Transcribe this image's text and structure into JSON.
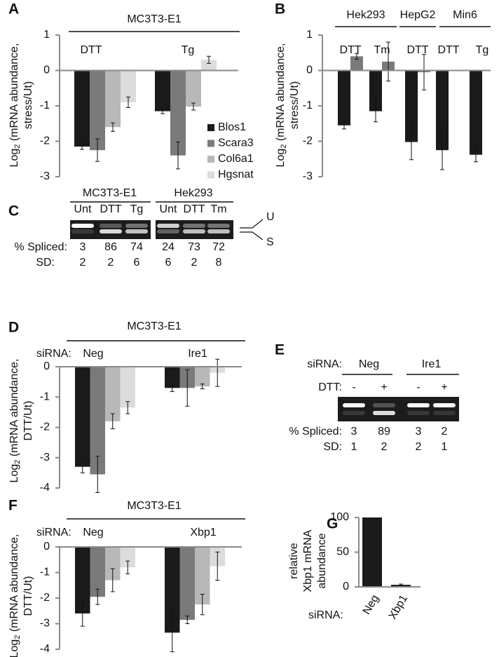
{
  "chart_data": [
    {
      "type": "bar",
      "panel": "A",
      "header": "MC3T3-E1",
      "ylabel": {
        "base": "Log",
        "sub": "2",
        "line1": " (mRNA abundance,",
        "line2": "stress/Ut)"
      },
      "categories": [
        "DTT",
        "Tg"
      ],
      "series": [
        {
          "name": "Blos1",
          "color": "#1a1a1a",
          "values": [
            -2.15,
            -1.15
          ],
          "errors": [
            0.08,
            0.07
          ]
        },
        {
          "name": "Scara3",
          "color": "#7a7a7a",
          "values": [
            -2.25,
            -2.4
          ],
          "errors": [
            0.32,
            0.38
          ]
        },
        {
          "name": "Col6a1",
          "color": "#b8b8b8",
          "values": [
            -1.6,
            -1.02
          ],
          "errors": [
            0.12,
            0.1
          ]
        },
        {
          "name": "Hgsnat",
          "color": "#dcdcdc",
          "values": [
            -0.9,
            0.3
          ],
          "errors": [
            0.15,
            0.1
          ]
        }
      ],
      "ylim": [
        -3,
        1
      ],
      "yticks": [
        -3,
        -2,
        -1,
        0,
        1
      ],
      "legend": "lower-right"
    },
    {
      "type": "bar",
      "panel": "B",
      "ylabel": {
        "base": "Log",
        "sub": "2",
        "line1": " (mRNA abundance,",
        "line2": "stress/Ut)"
      },
      "groups": [
        {
          "label": "Hek293",
          "categories": [
            "DTT",
            "Tm"
          ]
        },
        {
          "label": "HepG2",
          "categories": [
            "DTT"
          ]
        },
        {
          "label": "Min6",
          "categories": [
            "DTT",
            "Tg"
          ]
        }
      ],
      "series": [
        {
          "color": "#1a1a1a",
          "values": [
            -1.55,
            -1.15,
            -2.02,
            -2.25,
            -2.38
          ],
          "errors": [
            0.1,
            0.3,
            0.5,
            0.55,
            0.2
          ]
        },
        {
          "color": "#7a7a7a",
          "values": [
            0.4,
            0.25,
            -0.05,
            null,
            null
          ],
          "errors": [
            0.08,
            0.55,
            0.5,
            null,
            null
          ]
        }
      ],
      "ylim": [
        -3,
        1
      ],
      "yticks": [
        -3,
        -2,
        -1,
        0,
        1
      ]
    },
    {
      "type": "bar",
      "panel": "D",
      "header": "MC3T3-E1",
      "category_axis_label": "siRNA:",
      "ylabel": {
        "base": "Log",
        "sub": "2",
        "line1": " (mRNA abundance,",
        "line2": "DTT/Ut)"
      },
      "categories": [
        "Neg",
        "Ire1"
      ],
      "series": [
        {
          "color": "#1a1a1a",
          "values": [
            -3.3,
            -0.7
          ],
          "errors": [
            0.2,
            0.12
          ]
        },
        {
          "color": "#7a7a7a",
          "values": [
            -3.55,
            -0.7
          ],
          "errors": [
            0.6,
            0.6
          ]
        },
        {
          "color": "#b8b8b8",
          "values": [
            -1.8,
            -0.65
          ],
          "errors": [
            0.25,
            0.08
          ]
        },
        {
          "color": "#dcdcdc",
          "values": [
            -1.35,
            -0.2
          ],
          "errors": [
            0.2,
            0.45
          ]
        }
      ],
      "ylim": [
        -4,
        0
      ],
      "yticks": [
        -4,
        -3,
        -2,
        -1,
        0
      ]
    },
    {
      "type": "bar",
      "panel": "F",
      "header": "MC3T3-E1",
      "category_axis_label": "siRNA:",
      "ylabel": {
        "base": "Log",
        "sub": "2",
        "line1": " (mRNA abundance,",
        "line2": "DTT/Ut)"
      },
      "categories": [
        "Neg",
        "Xbp1"
      ],
      "series": [
        {
          "color": "#1a1a1a",
          "values": [
            -2.6,
            -3.35
          ],
          "errors": [
            0.5,
            0.75
          ]
        },
        {
          "color": "#7a7a7a",
          "values": [
            -1.95,
            -2.85
          ],
          "errors": [
            0.3,
            0.15
          ]
        },
        {
          "color": "#b8b8b8",
          "values": [
            -1.3,
            -2.25
          ],
          "errors": [
            0.45,
            0.4
          ]
        },
        {
          "color": "#dcdcdc",
          "values": [
            -0.8,
            -0.75
          ],
          "errors": [
            0.25,
            0.55
          ]
        }
      ],
      "ylim": [
        -4,
        0
      ],
      "yticks": [
        -4,
        -3,
        -2,
        -1,
        0
      ]
    },
    {
      "type": "bar",
      "panel": "G",
      "category_axis_label": "siRNA:",
      "ylabel_lines": [
        "relative",
        "Xbp1 mRNA",
        "abundance"
      ],
      "categories": [
        "Neg",
        "Xbp1"
      ],
      "series": [
        {
          "color": "#1a1a1a",
          "values": [
            100,
            3
          ],
          "errors": [
            null,
            1
          ]
        }
      ],
      "ylim": [
        0,
        100
      ],
      "yticks": [
        0,
        50,
        100
      ]
    }
  ],
  "gels": [
    {
      "panel": "C",
      "groups": [
        {
          "label": "MC3T3-E1",
          "lanes": [
            "Unt",
            "DTT",
            "Tg"
          ]
        },
        {
          "label": "Hek293",
          "lanes": [
            "Unt",
            "DTT",
            "Tm"
          ]
        }
      ],
      "spliced_label": "% Spliced:",
      "spliced": [
        3,
        86,
        74,
        24,
        73,
        72
      ],
      "sd_label": "SD:",
      "sd": [
        2,
        2,
        6,
        6,
        2,
        8
      ],
      "band_labels": [
        "U",
        "S"
      ]
    },
    {
      "panel": "E",
      "group_label": "siRNA:",
      "groups": [
        {
          "label": "Neg",
          "lanes": [
            "-",
            "+"
          ]
        },
        {
          "label": "Ire1",
          "lanes": [
            "-",
            "+"
          ]
        }
      ],
      "lane_label": "DTT:",
      "spliced_label": "% Spliced:",
      "spliced": [
        3,
        89,
        3,
        2
      ],
      "sd_label": "SD:",
      "sd": [
        1,
        2,
        2,
        1
      ]
    }
  ]
}
